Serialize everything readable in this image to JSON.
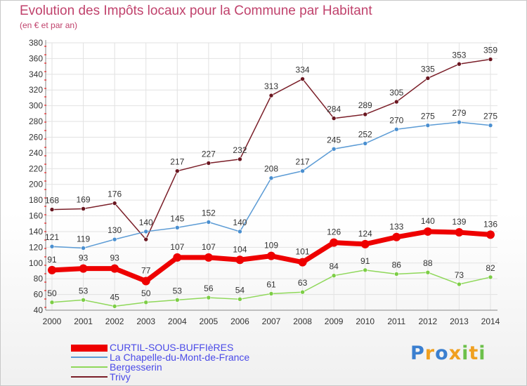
{
  "title": "Evolution des Impôts locaux pour la Commune par Habitant",
  "subtitle": "(en € et par an)",
  "logo_text": "Proxiti",
  "chart_data": {
    "type": "line",
    "title": "Evolution des Impôts locaux pour la Commune par Habitant",
    "subtitle": "(en € et par an)",
    "x": [
      "2000",
      "2001",
      "2002",
      "2003",
      "2004",
      "2005",
      "2006",
      "2007",
      "2008",
      "2009",
      "2010",
      "2011",
      "2012",
      "2013",
      "2014"
    ],
    "ylim": [
      40,
      380
    ],
    "yticks": [
      40,
      60,
      80,
      100,
      120,
      140,
      160,
      180,
      200,
      220,
      240,
      260,
      280,
      300,
      320,
      340,
      360,
      380
    ],
    "grid": true,
    "legend_position": "bottom-left",
    "series": [
      {
        "name": "CURTIL-SOUS-BUFFIèRES",
        "color": "#ee0000",
        "values": [
          91,
          93,
          93,
          77,
          107,
          107,
          104,
          109,
          101,
          126,
          124,
          133,
          140,
          139,
          136
        ]
      },
      {
        "name": "La Chapelle-du-Mont-de-France",
        "color": "#5b9bd5",
        "values": [
          121,
          119,
          130,
          140,
          145,
          152,
          140,
          208,
          217,
          245,
          252,
          270,
          275,
          279,
          275
        ]
      },
      {
        "name": "Bergesserin",
        "color": "#8fd85a",
        "values": [
          50,
          53,
          45,
          50,
          53,
          56,
          54,
          61,
          63,
          84,
          91,
          86,
          88,
          73,
          82
        ]
      },
      {
        "name": "Trivy",
        "color": "#7a1e28",
        "values": [
          168,
          169,
          176,
          130,
          217,
          227,
          232,
          313,
          334,
          284,
          289,
          305,
          335,
          353,
          359
        ]
      }
    ],
    "data_labels": [
      [
        "91",
        "93",
        "93",
        "77",
        "107",
        "107",
        "104",
        "109",
        "101",
        "126",
        "124",
        "133",
        "140",
        "139",
        "136"
      ],
      [
        "121",
        "119",
        "130",
        "140",
        "145",
        "152",
        "140",
        "208",
        "217",
        "245",
        "252",
        "270",
        "275",
        "279",
        "275"
      ],
      [
        "50",
        "53",
        "45",
        "50",
        "53",
        "56",
        "54",
        "61",
        "63",
        "84",
        "91",
        "86",
        "88",
        "73",
        "82"
      ],
      [
        "168",
        "169",
        "176",
        "",
        "217",
        "227",
        "232",
        "313",
        "334",
        "284",
        "289",
        "305",
        "335",
        "353",
        "359"
      ]
    ]
  }
}
